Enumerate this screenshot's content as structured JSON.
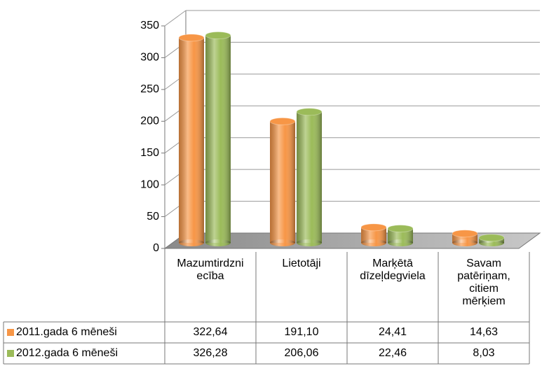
{
  "chart_data": {
    "type": "bar",
    "categories": [
      "Mazumtirdzniecība",
      "Lietotāji",
      "Marķētā dīzeļdegviela",
      "Savam patēriņam, citiem mērķiem"
    ],
    "series": [
      {
        "name": "2011.gada 6 mēneši",
        "color": "#f79646",
        "values": [
          322.64,
          191.1,
          24.41,
          14.63
        ],
        "value_labels": [
          "322,64",
          "191,10",
          "24,41",
          "14,63"
        ]
      },
      {
        "name": "2012.gada 6 mēneši",
        "color": "#9bbb59",
        "values": [
          326.28,
          206.06,
          22.46,
          8.03
        ],
        "value_labels": [
          "326,28",
          "206,06",
          "22,46",
          "8,03"
        ]
      }
    ],
    "ylim": [
      0,
      350
    ],
    "yticks": [
      0,
      50,
      100,
      150,
      200,
      250,
      300,
      350
    ],
    "grid": true
  }
}
